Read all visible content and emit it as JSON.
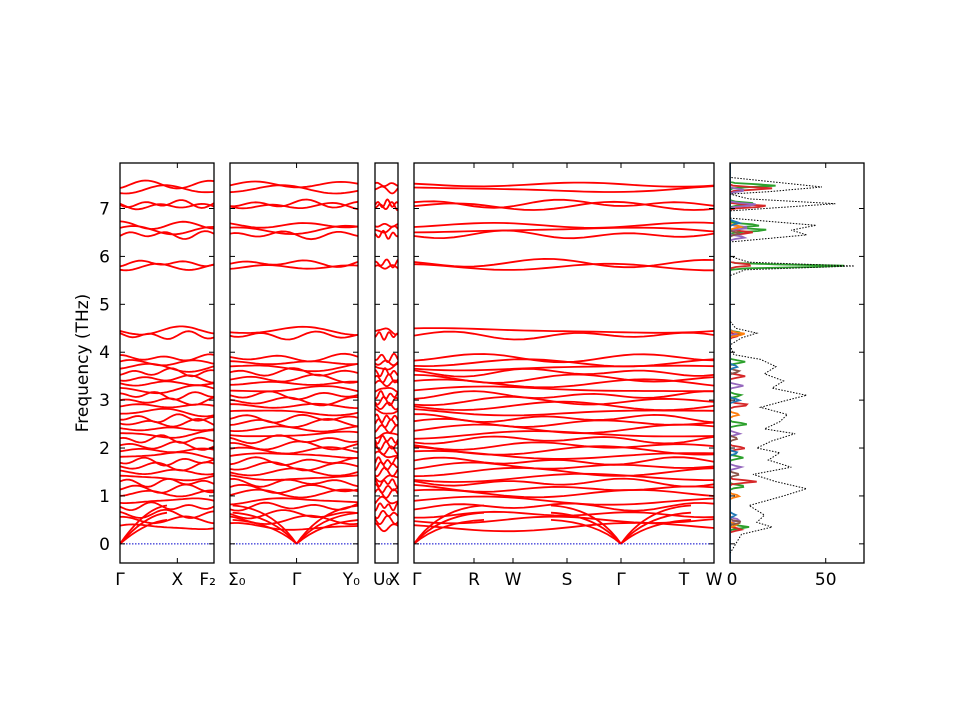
{
  "chart_data": {
    "type": "line",
    "title": "",
    "ylabel": "Frequency (THz)",
    "ylim": [
      -0.4,
      7.95
    ],
    "yticks": [
      0,
      1,
      2,
      3,
      4,
      5,
      6,
      7
    ],
    "grid": false,
    "band_color": "#ff0000",
    "zero_line_color": "#0000cc",
    "band_levels_thz": [
      0.35,
      0.5,
      0.62,
      0.78,
      0.9,
      1.05,
      1.15,
      1.28,
      1.38,
      1.5,
      1.62,
      1.72,
      1.85,
      1.95,
      2.05,
      2.18,
      2.28,
      2.4,
      2.52,
      2.62,
      2.75,
      2.88,
      2.98,
      3.1,
      3.22,
      3.35,
      3.45,
      3.58,
      3.68,
      3.78,
      3.88,
      4.35,
      4.45,
      5.78,
      5.86,
      6.45,
      6.55,
      6.65,
      7.05,
      7.1,
      7.4,
      7.5
    ],
    "band_panels": [
      {
        "labels": [
          "Γ",
          "X",
          "F₂"
        ],
        "positions": [
          0,
          0.61,
          1.0
        ]
      },
      {
        "labels": [
          "Σ₀",
          "Γ",
          "Y₀"
        ],
        "positions": [
          0,
          0.52,
          1.0
        ]
      },
      {
        "labels": [
          "U₀",
          "X"
        ],
        "positions": [
          0,
          1.0
        ]
      },
      {
        "labels": [
          "Γ",
          "R",
          "W",
          "S",
          "Γ",
          "T",
          "W"
        ],
        "positions": [
          0,
          0.2,
          0.33,
          0.51,
          0.69,
          0.9,
          1.0
        ]
      }
    ],
    "dos_panel": {
      "xlim": [
        0,
        70
      ],
      "xticks": [
        0,
        50
      ],
      "total_color": "#000000",
      "total_style": "dotted",
      "total": [
        [
          -0.2,
          0
        ],
        [
          0.2,
          6
        ],
        [
          0.35,
          22
        ],
        [
          0.45,
          14
        ],
        [
          0.6,
          18
        ],
        [
          0.8,
          10
        ],
        [
          1.0,
          28
        ],
        [
          1.15,
          40
        ],
        [
          1.3,
          24
        ],
        [
          1.45,
          12
        ],
        [
          1.6,
          32
        ],
        [
          1.75,
          20
        ],
        [
          1.9,
          26
        ],
        [
          2.0,
          14
        ],
        [
          2.15,
          22
        ],
        [
          2.3,
          34
        ],
        [
          2.4,
          18
        ],
        [
          2.55,
          26
        ],
        [
          2.7,
          30
        ],
        [
          2.85,
          16
        ],
        [
          3.0,
          30
        ],
        [
          3.1,
          40
        ],
        [
          3.25,
          22
        ],
        [
          3.4,
          28
        ],
        [
          3.55,
          18
        ],
        [
          3.7,
          24
        ],
        [
          3.85,
          16
        ],
        [
          3.95,
          2
        ],
        [
          4.15,
          0
        ],
        [
          4.3,
          6
        ],
        [
          4.4,
          14
        ],
        [
          4.5,
          3
        ],
        [
          4.65,
          0
        ],
        [
          5.6,
          0
        ],
        [
          5.72,
          8
        ],
        [
          5.8,
          65
        ],
        [
          5.88,
          10
        ],
        [
          6.0,
          0
        ],
        [
          6.3,
          0
        ],
        [
          6.45,
          40
        ],
        [
          6.55,
          32
        ],
        [
          6.65,
          45
        ],
        [
          6.8,
          0
        ],
        [
          6.95,
          0
        ],
        [
          7.1,
          55
        ],
        [
          7.2,
          10
        ],
        [
          7.3,
          0
        ],
        [
          7.35,
          20
        ],
        [
          7.45,
          48
        ],
        [
          7.55,
          24
        ],
        [
          7.65,
          0
        ],
        [
          7.9,
          0
        ]
      ],
      "partials": [
        {
          "color": "#2ca02c",
          "peaks": [
            [
              0.35,
              10
            ],
            [
              1.2,
              8
            ],
            [
              1.8,
              7
            ],
            [
              2.5,
              9
            ],
            [
              3.1,
              6
            ],
            [
              3.8,
              8
            ],
            [
              4.4,
              6
            ],
            [
              5.8,
              62
            ],
            [
              6.55,
              20
            ],
            [
              6.65,
              16
            ],
            [
              7.1,
              14
            ],
            [
              7.48,
              24
            ]
          ]
        },
        {
          "color": "#d62728",
          "peaks": [
            [
              0.3,
              6
            ],
            [
              1.3,
              14
            ],
            [
              2.0,
              8
            ],
            [
              2.9,
              10
            ],
            [
              3.5,
              8
            ],
            [
              4.35,
              5
            ],
            [
              5.82,
              12
            ],
            [
              6.5,
              12
            ],
            [
              7.05,
              20
            ],
            [
              7.42,
              22
            ]
          ]
        },
        {
          "color": "#9467bd",
          "peaks": [
            [
              0.5,
              5
            ],
            [
              1.6,
              6
            ],
            [
              2.3,
              5
            ],
            [
              3.3,
              7
            ],
            [
              4.4,
              4
            ],
            [
              6.4,
              8
            ],
            [
              6.6,
              10
            ],
            [
              7.08,
              14
            ],
            [
              7.38,
              8
            ]
          ]
        },
        {
          "color": "#ff7f0e",
          "peaks": [
            [
              0.4,
              4
            ],
            [
              1.0,
              5
            ],
            [
              2.7,
              5
            ],
            [
              4.38,
              8
            ],
            [
              6.62,
              6
            ]
          ]
        },
        {
          "color": "#8c564b",
          "peaks": [
            [
              0.45,
              6
            ],
            [
              1.45,
              5
            ],
            [
              2.2,
              4
            ],
            [
              3.6,
              5
            ],
            [
              6.48,
              5
            ]
          ]
        },
        {
          "color": "#1f77b4",
          "peaks": [
            [
              0.6,
              3
            ],
            [
              1.9,
              4
            ],
            [
              3.0,
              5
            ],
            [
              3.7,
              4
            ],
            [
              6.7,
              5
            ]
          ]
        }
      ]
    }
  }
}
